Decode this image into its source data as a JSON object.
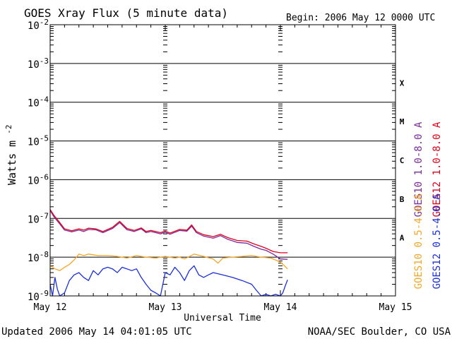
{
  "chart_data": {
    "type": "line",
    "title": "GOES Xray Flux (5 minute data)",
    "begin_label": "Begin:  2006 May 12 0000 UTC",
    "xlabel": "Universal Time",
    "ylabel": "Watts m",
    "ylabel_sup": "-2",
    "updated": "Updated 2006 May 14 04:01:05 UTC",
    "credit": "NOAA/SEC Boulder, CO USA",
    "x_unit": "hours since 2006 May 12 0000 UTC",
    "xlim": [
      0,
      72
    ],
    "ylog": true,
    "ylim": [
      1e-09,
      0.01
    ],
    "x_ticks": [
      {
        "x": 0,
        "label": "May 12"
      },
      {
        "x": 24,
        "label": "May 13"
      },
      {
        "x": 48,
        "label": "May 14"
      },
      {
        "x": 72,
        "label": "May 15"
      }
    ],
    "y_ticks": [
      {
        "base": "10",
        "exp": "-9",
        "value": 1e-09
      },
      {
        "base": "10",
        "exp": "-8",
        "value": 1e-08
      },
      {
        "base": "10",
        "exp": "-7",
        "value": 1e-07
      },
      {
        "base": "10",
        "exp": "-6",
        "value": 1e-06
      },
      {
        "base": "10",
        "exp": "-5",
        "value": 1e-05
      },
      {
        "base": "10",
        "exp": "-4",
        "value": 0.0001
      },
      {
        "base": "10",
        "exp": "-3",
        "value": 0.001
      },
      {
        "base": "10",
        "exp": "-2",
        "value": 0.01
      }
    ],
    "flare_classes": [
      {
        "label": "A",
        "value": 3.16e-08
      },
      {
        "label": "B",
        "value": 3.16e-07
      },
      {
        "label": "C",
        "value": 3.16e-06
      },
      {
        "label": "M",
        "value": 3.16e-05
      },
      {
        "label": "X",
        "value": 0.000316
      }
    ],
    "grid": true,
    "legend_position": "right (vertical)",
    "series": [
      {
        "name": "GOES10 1.0-8.0 A",
        "color": "#7b2a9b",
        "x": [
          0,
          0.8,
          2,
          3,
          4.5,
          6,
          7,
          8,
          9.5,
          11,
          13,
          14.5,
          16,
          17.5,
          19,
          20,
          21,
          23,
          24,
          25,
          27,
          28.5,
          29.5,
          30.5,
          32,
          34,
          35.5,
          37,
          39,
          41,
          42.5,
          44,
          45,
          46.5,
          48,
          49.5
        ],
        "values": [
          1.6e-07,
          1.1e-07,
          7.2e-08,
          5e-08,
          4.5e-08,
          5e-08,
          4.6e-08,
          5.2e-08,
          5.1e-08,
          4.3e-08,
          5.5e-08,
          7.8e-08,
          5.1e-08,
          4.6e-08,
          5.4e-08,
          4.3e-08,
          4.6e-08,
          4e-08,
          4.4e-08,
          3.9e-08,
          4.9e-08,
          4.7e-08,
          6.3e-08,
          4.3e-08,
          3.5e-08,
          3.1e-08,
          3.6e-08,
          2.9e-08,
          2.4e-08,
          2.3e-08,
          1.9e-08,
          1.6e-08,
          1.5e-08,
          1.2e-08,
          9e-09,
          8.8e-09
        ]
      },
      {
        "name": "GOES12 1.0-8.0 A",
        "color": "#e0001b",
        "x": [
          0,
          0.8,
          2,
          3,
          4.5,
          6,
          7,
          8,
          9.5,
          11,
          13,
          14.5,
          16,
          17.5,
          19,
          20,
          21,
          23,
          24,
          25,
          27,
          28.5,
          29.5,
          30.5,
          32,
          34,
          35.5,
          37,
          39,
          41,
          42.5,
          44,
          45,
          46.5,
          48,
          49.5
        ],
        "values": [
          1.7e-07,
          1.2e-07,
          7.8e-08,
          5.4e-08,
          4.8e-08,
          5.4e-08,
          5e-08,
          5.6e-08,
          5.4e-08,
          4.6e-08,
          5.9e-08,
          8.4e-08,
          5.5e-08,
          4.9e-08,
          5.7e-08,
          4.6e-08,
          4.9e-08,
          4.3e-08,
          4.7e-08,
          4.2e-08,
          5.2e-08,
          5e-08,
          6.8e-08,
          4.6e-08,
          3.8e-08,
          3.4e-08,
          3.9e-08,
          3.2e-08,
          2.7e-08,
          2.6e-08,
          2.2e-08,
          1.9e-08,
          1.7e-08,
          1.4e-08,
          1.3e-08,
          1.3e-08
        ]
      },
      {
        "name": "GOES10 0.5-4.0 A",
        "color": "#f5a623",
        "x": [
          0,
          0.5,
          1,
          2,
          3,
          4,
          5,
          6,
          7,
          8,
          9,
          10,
          12,
          14,
          16,
          18,
          20,
          22,
          24,
          26,
          27,
          28,
          30,
          32,
          34,
          35,
          36,
          38,
          40,
          42,
          44,
          46,
          48,
          49.5
        ],
        "values": [
          6e-09,
          5.5e-09,
          5e-09,
          4.5e-09,
          5.5e-09,
          6.5e-09,
          8.5e-09,
          1.2e-08,
          1.1e-08,
          1.2e-08,
          1.15e-08,
          1.1e-08,
          1.1e-08,
          1.05e-08,
          9.5e-09,
          1.1e-08,
          1e-08,
          9.5e-09,
          1.05e-08,
          9.5e-09,
          1e-08,
          9e-09,
          1.2e-08,
          1.05e-08,
          9e-09,
          7e-09,
          9.5e-09,
          1e-08,
          1.05e-08,
          1.1e-08,
          1e-08,
          9.5e-09,
          7.5e-09,
          5e-09
        ]
      },
      {
        "name": "GOES12 0.5-4.0 A",
        "color": "#1a2fd6",
        "x": [
          0,
          0.5,
          1,
          1.5,
          2,
          3,
          4,
          5,
          6,
          7,
          8,
          9,
          10,
          11,
          12,
          13,
          14,
          15,
          16,
          17,
          18,
          19,
          20,
          21,
          22,
          23,
          24,
          25,
          26,
          27,
          28,
          29,
          30,
          31,
          32,
          33,
          34,
          36,
          38,
          40,
          42,
          43,
          44,
          45,
          46,
          47,
          48,
          48.5,
          49,
          49.5
        ],
        "values": [
          2e-09,
          1e-09,
          3e-09,
          1.5e-09,
          1e-09,
          1.2e-09,
          2.5e-09,
          3.5e-09,
          4e-09,
          3e-09,
          2.5e-09,
          4.5e-09,
          3.5e-09,
          5e-09,
          5.5e-09,
          5e-09,
          4e-09,
          5.5e-09,
          5e-09,
          4.5e-09,
          5e-09,
          3e-09,
          2e-09,
          1.4e-09,
          1.2e-09,
          1e-09,
          4e-09,
          3.5e-09,
          5.5e-09,
          4e-09,
          2.5e-09,
          4.5e-09,
          6e-09,
          3.5e-09,
          3e-09,
          3.5e-09,
          4e-09,
          3.5e-09,
          3e-09,
          2.5e-09,
          2e-09,
          1.4e-09,
          1e-09,
          1.1e-09,
          1e-09,
          1.1e-09,
          1e-09,
          1.2e-09,
          1.8e-09,
          2.6e-09
        ]
      }
    ]
  }
}
